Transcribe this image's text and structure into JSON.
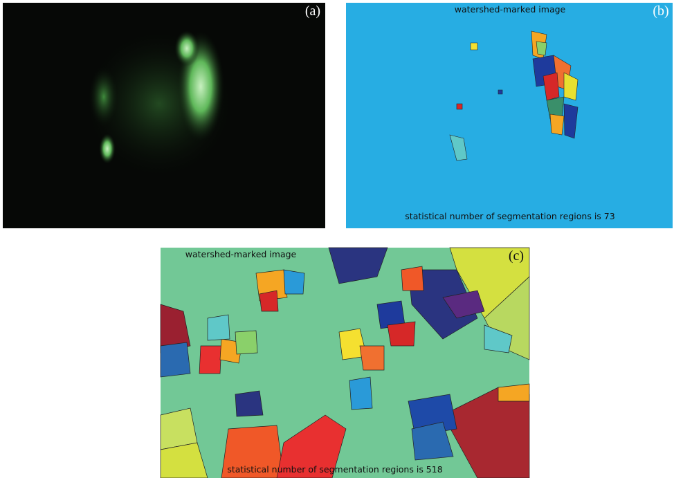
{
  "panels": [
    {
      "label": "(a)"
    },
    {
      "label": "(b)",
      "title": "watershed-marked image",
      "caption": "statistical number of segmentation regions is 73"
    },
    {
      "label": "(c)",
      "title": "watershed-marked image",
      "caption": "statistical number of segmentation regions is 518"
    }
  ]
}
